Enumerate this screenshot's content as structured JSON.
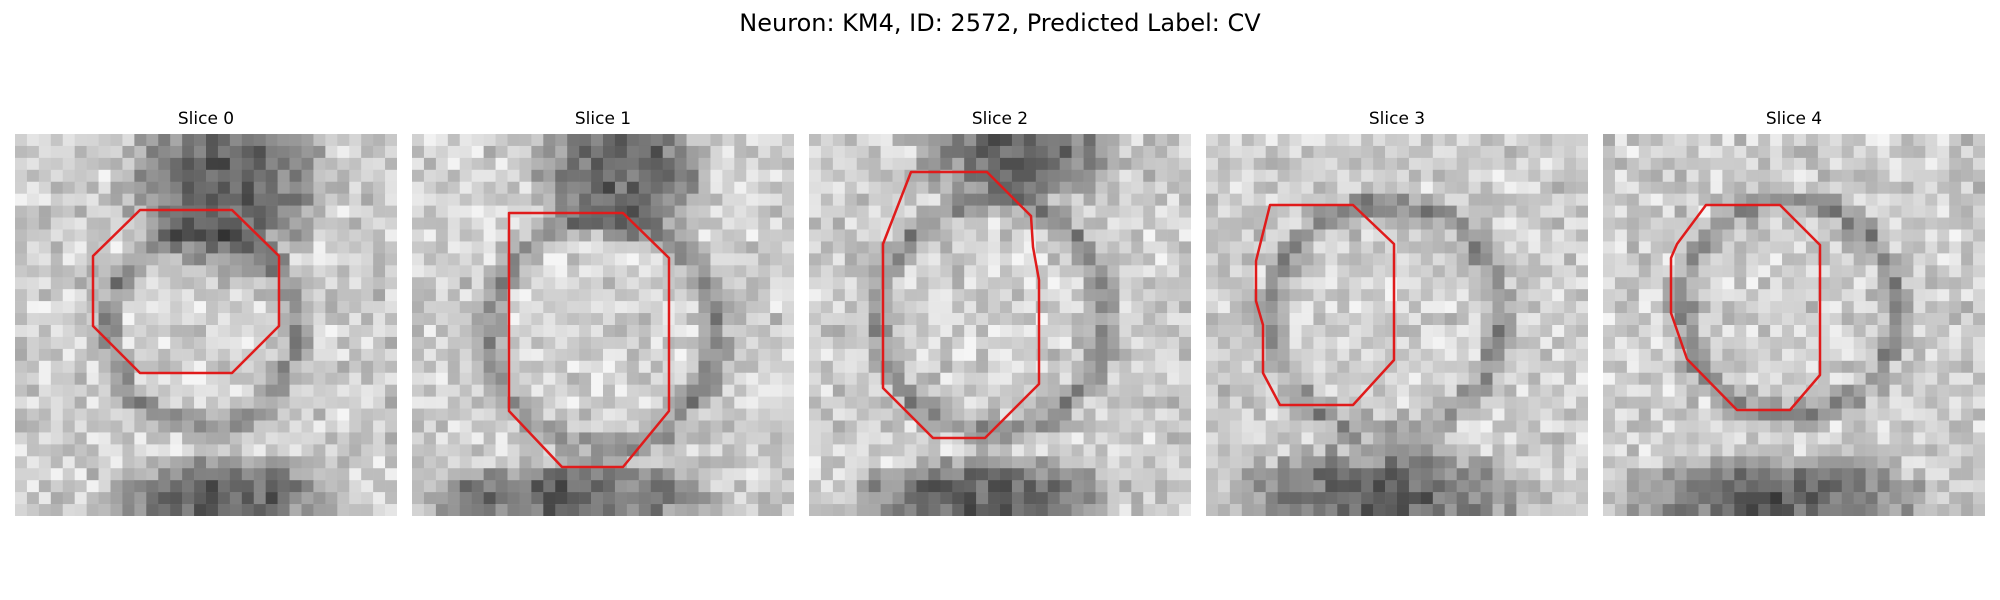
{
  "figure": {
    "title": "Neuron: KM4, ID: 2572, Predicted Label: CV"
  },
  "colors": {
    "outline": "#e01b1b",
    "background": "#ffffff",
    "image_palette": "grayscale"
  },
  "slices": [
    {
      "title": "Slice 0"
    },
    {
      "title": "Slice 1"
    },
    {
      "title": "Slice 2"
    },
    {
      "title": "Slice 3"
    },
    {
      "title": "Slice 4"
    }
  ]
}
